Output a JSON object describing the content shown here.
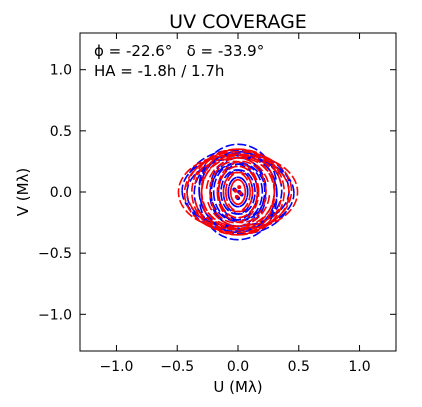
{
  "chart_data": {
    "type": "scatter",
    "title": "UV COVERAGE",
    "xlabel": "U (Mλ)",
    "ylabel": "V (Mλ)",
    "xlim": [
      -1.3,
      1.3
    ],
    "ylim": [
      -1.3,
      1.3
    ],
    "xticks": [
      -1.0,
      -0.5,
      0.0,
      0.5,
      1.0
    ],
    "yticks": [
      -1.0,
      -0.5,
      0.0,
      0.5,
      1.0
    ],
    "xtick_labels": [
      "−1.0",
      "−0.5",
      "0.0",
      "0.5",
      "1.0"
    ],
    "ytick_labels": [
      "−1.0",
      "−0.5",
      "0.0",
      "0.5",
      "1.0"
    ],
    "grid": false,
    "annotations": {
      "line1": "ϕ = -22.6°   δ = -33.9°",
      "line2": "HA = -1.8h / 1.7h"
    },
    "series": [
      {
        "color": "#0000ff",
        "tracks": [
          {
            "center": [
              0.02,
              -0.01
            ],
            "radius": [
              0.44,
              0.29
            ],
            "start": 0.0,
            "end": 6.28
          },
          {
            "center": [
              0.04,
              -0.01
            ],
            "radius": [
              0.4,
              0.33
            ],
            "start": 0.3,
            "end": 5.9
          },
          {
            "center": [
              0.0,
              0.03
            ],
            "radius": [
              0.32,
              0.36
            ],
            "start": 0.2,
            "end": 6.0
          },
          {
            "center": [
              0.05,
              -0.01
            ],
            "radius": [
              0.27,
              0.3
            ],
            "start": 0.0,
            "end": 6.28
          },
          {
            "center": [
              0.0,
              -0.02
            ],
            "radius": [
              0.23,
              0.26
            ],
            "start": 0.4,
            "end": 6.2
          },
          {
            "center": [
              0.02,
              0.0
            ],
            "radius": [
              0.18,
              0.23
            ],
            "start": 0.0,
            "end": 6.28
          },
          {
            "center": [
              0.01,
              0.0
            ],
            "radius": [
              0.13,
              0.18
            ],
            "start": 0.0,
            "end": 6.28
          },
          {
            "center": [
              0.0,
              0.0
            ],
            "radius": [
              0.08,
              0.12
            ],
            "start": 0.0,
            "end": 6.28
          }
        ],
        "points": [
          [
            0.0,
            -0.05
          ],
          [
            0.01,
            0.0
          ],
          [
            -0.03,
            0.02
          ],
          [
            0.03,
            -0.02
          ]
        ]
      },
      {
        "color": "#ff0000",
        "tracks": [
          {
            "center": [
              -0.01,
              -0.01
            ],
            "radius": [
              0.43,
              0.32
            ],
            "start": 0.0,
            "end": 6.28
          },
          {
            "center": [
              -0.05,
              0.0
            ],
            "radius": [
              0.44,
              0.3
            ],
            "start": 0.5,
            "end": 5.8
          },
          {
            "center": [
              -0.01,
              0.0
            ],
            "radius": [
              0.37,
              0.35
            ],
            "start": 0.2,
            "end": 6.1
          },
          {
            "center": [
              0.0,
              -0.02
            ],
            "radius": [
              0.3,
              0.33
            ],
            "start": 0.0,
            "end": 6.28
          },
          {
            "center": [
              -0.02,
              0.0
            ],
            "radius": [
              0.28,
              0.28
            ],
            "start": 0.3,
            "end": 6.2
          },
          {
            "center": [
              -0.03,
              0.0
            ],
            "radius": [
              0.2,
              0.25
            ],
            "start": 0.0,
            "end": 6.28
          },
          {
            "center": [
              0.0,
              0.0
            ],
            "radius": [
              0.16,
              0.21
            ],
            "start": 0.0,
            "end": 6.28
          },
          {
            "center": [
              -0.01,
              0.0
            ],
            "radius": [
              0.11,
              0.16
            ],
            "start": 0.0,
            "end": 6.28
          },
          {
            "center": [
              0.0,
              0.0
            ],
            "radius": [
              0.06,
              0.1
            ],
            "start": 0.0,
            "end": 6.28
          }
        ],
        "points": [
          [
            -0.02,
            0.01
          ],
          [
            0.02,
            -0.01
          ],
          [
            -0.01,
            -0.04
          ],
          [
            0.01,
            0.04
          ]
        ]
      }
    ]
  }
}
